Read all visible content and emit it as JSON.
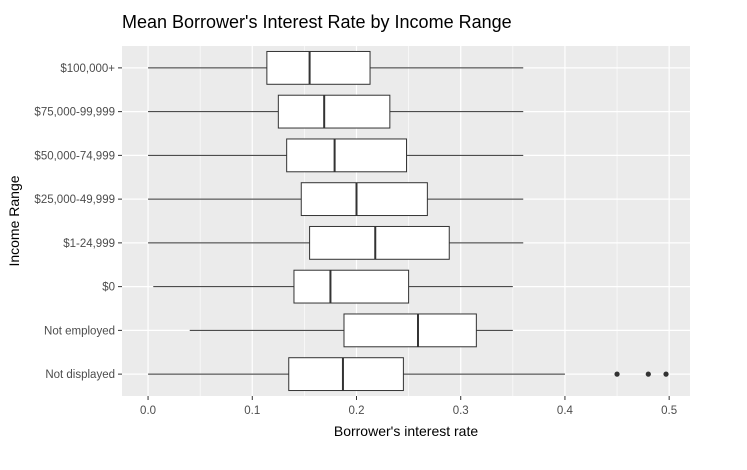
{
  "chart_data": {
    "type": "boxplot",
    "title": "Mean Borrower's Interest Rate by Income Range",
    "xlabel": "Borrower's interest rate",
    "ylabel": "Income Range",
    "xlim": [
      -0.025,
      0.52
    ],
    "xticks": [
      0.0,
      0.1,
      0.2,
      0.3,
      0.4,
      0.5
    ],
    "xtick_labels": [
      "0.0",
      "0.1",
      "0.2",
      "0.3",
      "0.4",
      "0.5"
    ],
    "grid": true,
    "categories": [
      "$100,000+",
      "$75,000-99,999",
      "$50,000-74,999",
      "$25,000-49,999",
      "$1-24,999",
      "$0",
      "Not employed",
      "Not displayed"
    ],
    "boxes": [
      {
        "category": "$100,000+",
        "whisker_low": 0.0,
        "q1": 0.114,
        "median": 0.155,
        "q3": 0.213,
        "whisker_high": 0.36,
        "outliers": []
      },
      {
        "category": "$75,000-99,999",
        "whisker_low": 0.0,
        "q1": 0.125,
        "median": 0.169,
        "q3": 0.232,
        "whisker_high": 0.36,
        "outliers": []
      },
      {
        "category": "$50,000-74,999",
        "whisker_low": 0.0,
        "q1": 0.133,
        "median": 0.179,
        "q3": 0.248,
        "whisker_high": 0.36,
        "outliers": []
      },
      {
        "category": "$25,000-49,999",
        "whisker_low": 0.0,
        "q1": 0.147,
        "median": 0.2,
        "q3": 0.268,
        "whisker_high": 0.36,
        "outliers": []
      },
      {
        "category": "$1-24,999",
        "whisker_low": 0.0,
        "q1": 0.155,
        "median": 0.218,
        "q3": 0.289,
        "whisker_high": 0.36,
        "outliers": []
      },
      {
        "category": "$0",
        "whisker_low": 0.005,
        "q1": 0.14,
        "median": 0.175,
        "q3": 0.25,
        "whisker_high": 0.35,
        "outliers": []
      },
      {
        "category": "Not employed",
        "whisker_low": 0.04,
        "q1": 0.188,
        "median": 0.259,
        "q3": 0.315,
        "whisker_high": 0.35,
        "outliers": []
      },
      {
        "category": "Not displayed",
        "whisker_low": 0.0,
        "q1": 0.135,
        "median": 0.187,
        "q3": 0.245,
        "whisker_high": 0.4,
        "outliers": [
          0.45,
          0.48,
          0.497
        ]
      }
    ],
    "colors": {
      "panel": "#ebebeb",
      "grid": "#ffffff",
      "box_fill": "#ffffff",
      "box_line": "#333333",
      "tick_text": "#4d4d4d"
    }
  }
}
